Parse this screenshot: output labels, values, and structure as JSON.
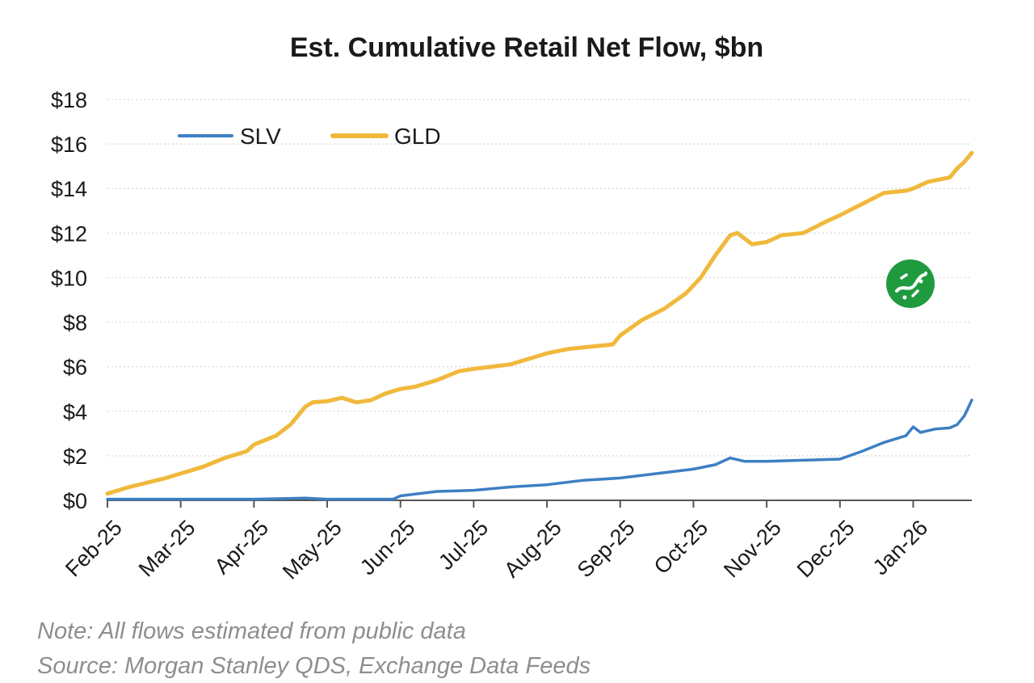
{
  "chart_data": {
    "type": "line",
    "title": "Est. Cumulative Retail Net Flow, $bn",
    "xlabel": "",
    "ylabel": "",
    "ylim": [
      0,
      18
    ],
    "y_ticks": [
      "$0",
      "$2",
      "$4",
      "$6",
      "$8",
      "$10",
      "$12",
      "$14",
      "$16",
      "$18"
    ],
    "x_ticks": [
      "Feb-25",
      "Mar-25",
      "Apr-25",
      "May-25",
      "Jun-25",
      "Jul-25",
      "Aug-25",
      "Sep-25",
      "Oct-25",
      "Nov-25",
      "Dec-25",
      "Jan-26"
    ],
    "x_range": [
      0,
      11.8
    ],
    "grid": true,
    "legend_position": "top-left",
    "series": [
      {
        "name": "SLV",
        "color": "#3d7fc4",
        "x": [
          0,
          1,
          2,
          2.7,
          3,
          3.5,
          3.9,
          4.0,
          4.5,
          5.0,
          5.5,
          6.0,
          6.5,
          7.0,
          7.5,
          8.0,
          8.3,
          8.5,
          8.7,
          9.0,
          9.5,
          10.0,
          10.3,
          10.6,
          10.9,
          11.0,
          11.1,
          11.3,
          11.5,
          11.6,
          11.7,
          11.8
        ],
        "values": [
          0.05,
          0.05,
          0.05,
          0.1,
          0.05,
          0.05,
          0.05,
          0.2,
          0.4,
          0.45,
          0.6,
          0.7,
          0.9,
          1.0,
          1.2,
          1.4,
          1.6,
          1.9,
          1.75,
          1.75,
          1.8,
          1.85,
          2.2,
          2.6,
          2.9,
          3.3,
          3.05,
          3.2,
          3.25,
          3.4,
          3.8,
          4.5
        ]
      },
      {
        "name": "GLD",
        "color": "#f0b93c",
        "x": [
          0,
          0.3,
          0.8,
          1.0,
          1.3,
          1.6,
          1.9,
          2.0,
          2.3,
          2.5,
          2.7,
          2.8,
          3.0,
          3.2,
          3.4,
          3.6,
          3.8,
          4.0,
          4.2,
          4.5,
          4.8,
          5.0,
          5.5,
          5.8,
          6.0,
          6.3,
          6.6,
          6.9,
          7.0,
          7.3,
          7.6,
          7.9,
          8.1,
          8.3,
          8.5,
          8.6,
          8.8,
          9.0,
          9.2,
          9.5,
          9.8,
          10.0,
          10.3,
          10.6,
          10.9,
          11.0,
          11.2,
          11.5,
          11.6,
          11.7,
          11.8
        ],
        "values": [
          0.3,
          0.6,
          1.0,
          1.2,
          1.5,
          1.9,
          2.2,
          2.5,
          2.9,
          3.4,
          4.2,
          4.4,
          4.45,
          4.6,
          4.4,
          4.5,
          4.8,
          5.0,
          5.1,
          5.4,
          5.8,
          5.9,
          6.1,
          6.4,
          6.6,
          6.8,
          6.9,
          7.0,
          7.4,
          8.1,
          8.6,
          9.3,
          10.0,
          11.0,
          11.9,
          12.0,
          11.5,
          11.6,
          11.9,
          12.0,
          12.5,
          12.8,
          13.3,
          13.8,
          13.9,
          14.0,
          14.3,
          14.5,
          14.9,
          15.2,
          15.6
        ]
      }
    ]
  },
  "footnotes": {
    "note": "Note:  All flows estimated from public data",
    "source": "Source: Morgan Stanley QDS, Exchange Data Feeds"
  },
  "watermark": {
    "icon": "circular-green-logo-icon",
    "color": "#1f9a3e"
  }
}
